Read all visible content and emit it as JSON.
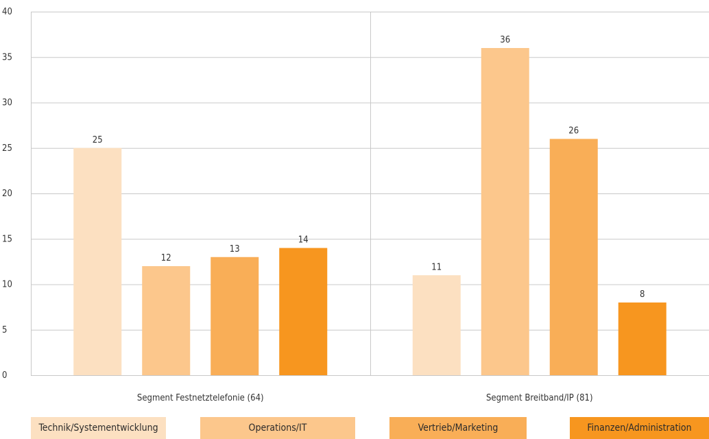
{
  "chart_data": {
    "type": "bar",
    "categories": [
      "Segment Festnetztelefonie  (64)",
      "Segment Breitband/IP  (81)"
    ],
    "series": [
      {
        "name": "Technik/Systementwicklung",
        "color": "#fce0c1",
        "values": [
          25,
          11
        ]
      },
      {
        "name": "Operations/IT",
        "color": "#fcc78c",
        "values": [
          12,
          36
        ]
      },
      {
        "name": "Vertrieb/Marketing",
        "color": "#f9ae57",
        "values": [
          13,
          26
        ]
      },
      {
        "name": "Finanzen/Administration",
        "color": "#f7961f",
        "values": [
          14,
          8
        ]
      }
    ],
    "yticks": [
      0,
      5,
      10,
      15,
      20,
      25,
      30,
      35,
      40
    ],
    "ylim": [
      0,
      40
    ],
    "grid": true,
    "legend_position": "bottom",
    "title": "",
    "xlabel": "",
    "ylabel": ""
  }
}
